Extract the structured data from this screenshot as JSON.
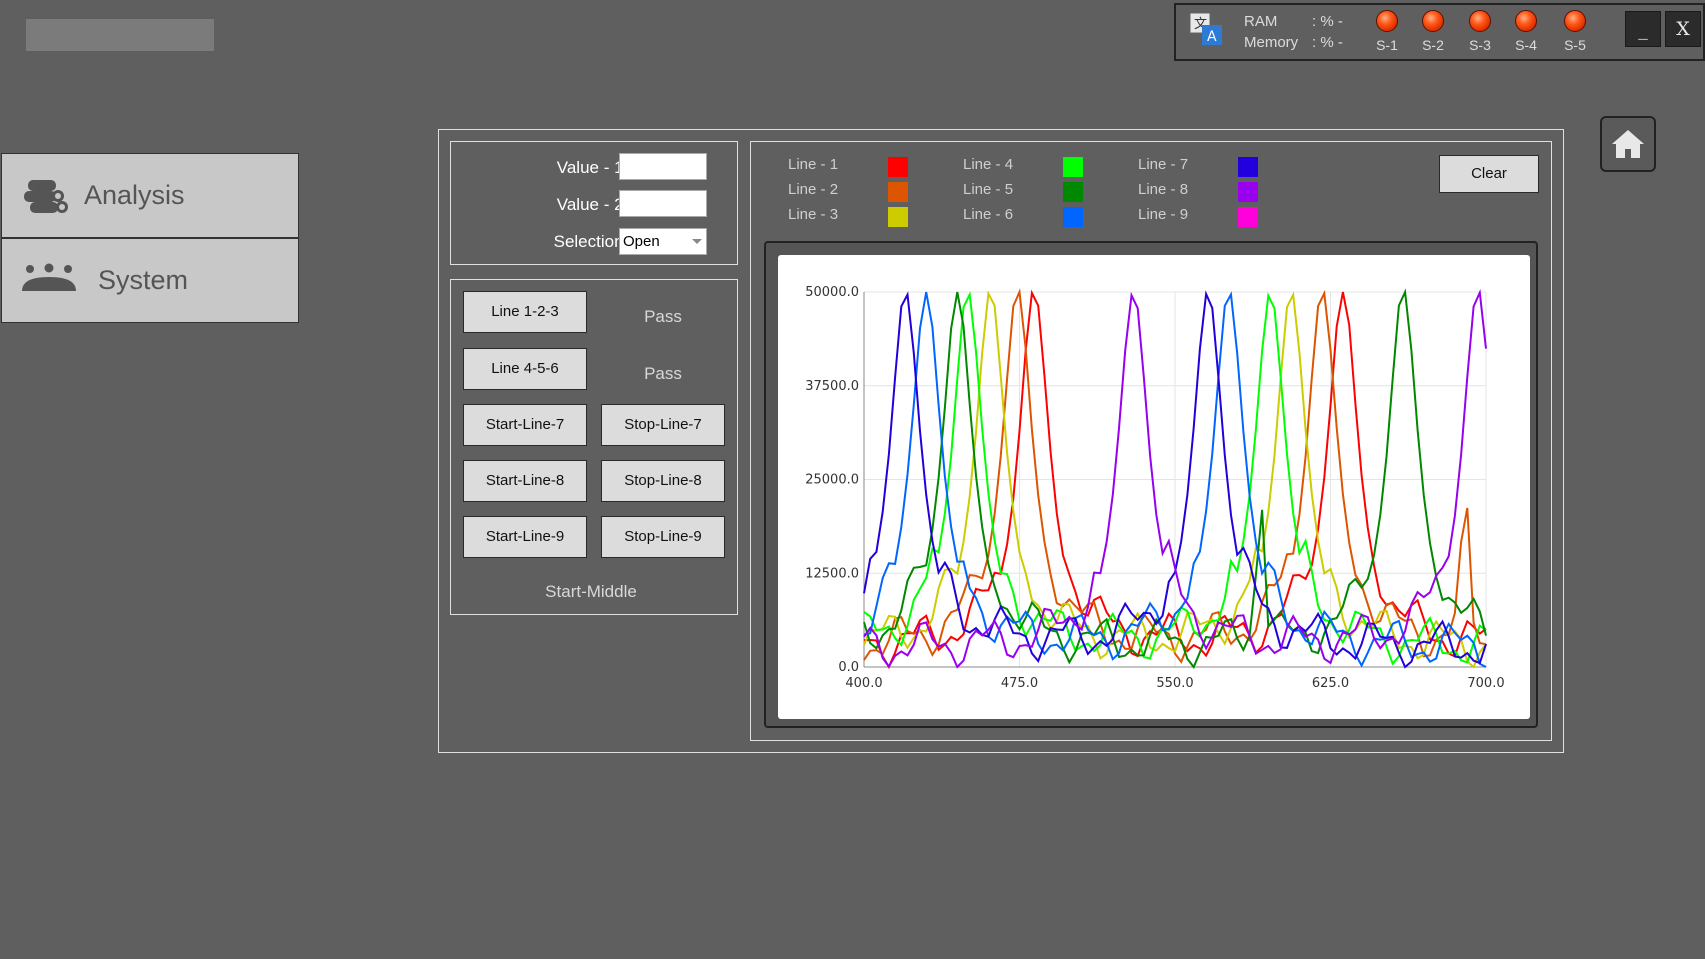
{
  "status": {
    "ram_label": "RAM",
    "ram_value": ": % -",
    "memory_label": "Memory",
    "memory_value": ": % -",
    "sensors": [
      "S-1",
      "S-2",
      "S-3",
      "S-4",
      "S-5"
    ],
    "sensor_color": "#ff4a10",
    "minimize_label": "_",
    "close_label": "X"
  },
  "sidebar": {
    "items": [
      {
        "label": "Analysis",
        "icon": "pipes-icon"
      },
      {
        "label": "System",
        "icon": "people-icon"
      }
    ]
  },
  "inputs": {
    "value1_label": "Value - 1 :",
    "value1": "",
    "value2_label": "Value - 2 :",
    "value2": "",
    "selection_label": "Selection :",
    "selection_value": "Open"
  },
  "controls": {
    "line123_label": "Line 1-2-3",
    "line123_status": "Pass",
    "line456_label": "Line 4-5-6",
    "line456_status": "Pass",
    "start7": "Start-Line-7",
    "stop7": "Stop-Line-7",
    "start8": "Start-Line-8",
    "stop8": "Stop-Line-8",
    "start9": "Start-Line-9",
    "stop9": "Stop-Line-9",
    "footer_status": "Start-Middle"
  },
  "chart_toolbar": {
    "clear_label": "Clear"
  },
  "chart_data": {
    "type": "line",
    "xlim": [
      400,
      700
    ],
    "ylim": [
      0,
      50000
    ],
    "x_ticks": [
      "400.0",
      "475.0",
      "550.0",
      "625.0",
      "700.0"
    ],
    "y_ticks": [
      "0.0",
      "12500.0",
      "25000.0",
      "37500.0",
      "50000.0"
    ],
    "grid": true,
    "legend_placement": "top",
    "series": [
      {
        "name": "Line - 1",
        "color": "#ff0000",
        "peaks": [
          482,
          631
        ]
      },
      {
        "name": "Line - 2",
        "color": "#dd5500",
        "peaks": [
          474,
          621,
          690
        ]
      },
      {
        "name": "Line - 3",
        "color": "#cccc00",
        "peaks": [
          461,
          606
        ]
      },
      {
        "name": "Line - 4",
        "color": "#00ff00",
        "peaks": [
          450,
          596
        ]
      },
      {
        "name": "Line - 5",
        "color": "#008800",
        "peaks": [
          445,
          591,
          660
        ]
      },
      {
        "name": "Line - 6",
        "color": "#0066ff",
        "peaks": [
          430,
          576
        ]
      },
      {
        "name": "Line - 7",
        "color": "#2200dd",
        "peaks": [
          420,
          566
        ]
      },
      {
        "name": "Line - 8",
        "color": "#9900ee",
        "peaks": [
          530,
          696
        ]
      },
      {
        "name": "Line - 9",
        "color": "#ff00dd",
        "peaks": []
      }
    ]
  }
}
